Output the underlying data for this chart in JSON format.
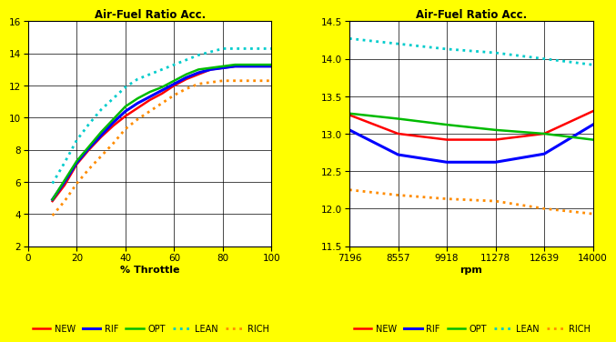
{
  "title": "Air-Fuel Ratio Acc.",
  "background_color": "#FFFF00",
  "plot_bg_color": "#FFFFFF",
  "left": {
    "xlabel": "% Throttle",
    "xlim": [
      0,
      100
    ],
    "ylim": [
      2,
      16
    ],
    "xticks": [
      0,
      20,
      40,
      60,
      80,
      100
    ],
    "yticks": [
      2,
      4,
      6,
      8,
      10,
      12,
      14,
      16
    ],
    "throttle": [
      10,
      15,
      20,
      25,
      30,
      35,
      40,
      45,
      50,
      55,
      60,
      65,
      70,
      75,
      80,
      85,
      90,
      95,
      100
    ],
    "NEW": [
      4.8,
      5.8,
      7.1,
      8.0,
      8.8,
      9.5,
      10.1,
      10.6,
      11.1,
      11.5,
      12.0,
      12.4,
      12.7,
      13.0,
      13.1,
      13.2,
      13.2,
      13.2,
      13.2
    ],
    "RIF": [
      4.9,
      6.0,
      7.2,
      8.1,
      8.9,
      9.7,
      10.4,
      10.9,
      11.3,
      11.7,
      12.1,
      12.5,
      12.8,
      13.0,
      13.1,
      13.2,
      13.2,
      13.2,
      13.2
    ],
    "OPT": [
      4.9,
      6.1,
      7.3,
      8.2,
      9.1,
      9.9,
      10.7,
      11.2,
      11.6,
      11.9,
      12.3,
      12.7,
      13.0,
      13.1,
      13.2,
      13.3,
      13.3,
      13.3,
      13.3
    ],
    "LEAN": [
      5.9,
      7.2,
      8.6,
      9.6,
      10.5,
      11.2,
      11.9,
      12.4,
      12.7,
      13.0,
      13.3,
      13.6,
      13.9,
      14.1,
      14.3,
      14.3,
      14.3,
      14.3,
      14.3
    ],
    "RICH": [
      3.9,
      4.8,
      5.9,
      6.8,
      7.6,
      8.4,
      9.3,
      9.9,
      10.4,
      10.9,
      11.4,
      11.8,
      12.1,
      12.2,
      12.3,
      12.3,
      12.3,
      12.3,
      12.3
    ]
  },
  "right": {
    "xlabel": "rpm",
    "xlim_labels": [
      "7196",
      "8557",
      "9918",
      "11278",
      "12639",
      "14000"
    ],
    "xlim": [
      0,
      5
    ],
    "xtick_positions": [
      0,
      1,
      2,
      3,
      4,
      5
    ],
    "ylim": [
      11.5,
      14.5
    ],
    "yticks": [
      11.5,
      12.0,
      12.5,
      13.0,
      13.5,
      14.0,
      14.5
    ],
    "rpm_x": [
      0,
      1,
      2,
      3,
      4,
      5
    ],
    "NEW": [
      13.25,
      13.0,
      12.92,
      12.92,
      13.0,
      13.3
    ],
    "RIF": [
      13.05,
      12.72,
      12.62,
      12.62,
      12.73,
      13.12
    ],
    "OPT": [
      13.27,
      13.2,
      13.12,
      13.05,
      13.0,
      12.92
    ],
    "LEAN": [
      14.27,
      14.2,
      14.13,
      14.08,
      14.0,
      13.92
    ],
    "RICH": [
      12.25,
      12.18,
      12.13,
      12.1,
      12.0,
      11.93
    ]
  },
  "series": {
    "NEW": {
      "color": "#FF0000",
      "linestyle": "-",
      "linewidth": 1.8
    },
    "RIF": {
      "color": "#0000FF",
      "linestyle": "-",
      "linewidth": 2.2
    },
    "OPT": {
      "color": "#00BB00",
      "linestyle": "-",
      "linewidth": 1.8
    },
    "LEAN": {
      "color": "#00CCCC",
      "linestyle": ":",
      "linewidth": 2.0
    },
    "RICH": {
      "color": "#FF8C00",
      "linestyle": ":",
      "linewidth": 2.0
    }
  },
  "legend_order": [
    "NEW",
    "RIF",
    "OPT",
    "LEAN",
    "RICH"
  ]
}
